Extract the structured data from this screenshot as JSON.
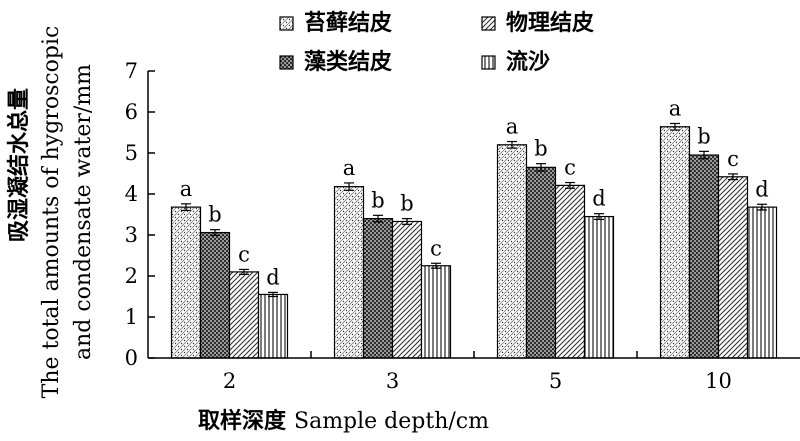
{
  "chart_data": {
    "type": "bar",
    "categories": [
      "2",
      "3",
      "5",
      "10"
    ],
    "series": [
      {
        "name": "苔藓结皮",
        "values": [
          3.68,
          4.18,
          5.2,
          5.64
        ],
        "errors": [
          0.08,
          0.09,
          0.08,
          0.08
        ],
        "labels": [
          "a",
          "a",
          "a",
          "a"
        ],
        "pattern": "dots"
      },
      {
        "name": "藻类结皮",
        "values": [
          3.06,
          3.4,
          4.65,
          4.95
        ],
        "errors": [
          0.07,
          0.08,
          0.09,
          0.09
        ],
        "labels": [
          "b",
          "b",
          "b",
          "b"
        ],
        "pattern": "checker"
      },
      {
        "name": "物理结皮",
        "values": [
          2.1,
          3.33,
          4.21,
          4.42
        ],
        "errors": [
          0.06,
          0.07,
          0.07,
          0.07
        ],
        "labels": [
          "c",
          "b",
          "c",
          "c"
        ],
        "pattern": "diagonal"
      },
      {
        "name": "流沙",
        "values": [
          1.55,
          2.25,
          3.45,
          3.68
        ],
        "errors": [
          0.05,
          0.06,
          0.07,
          0.07
        ],
        "labels": [
          "d",
          "c",
          "d",
          "d"
        ],
        "pattern": "vertical"
      }
    ],
    "xlabel_cn": "取样深度",
    "xlabel_en": "Sample depth/cm",
    "ylabel_cn": "吸湿凝结水总量",
    "ylabel_en_line1": "The total amounts of hygroscopic",
    "ylabel_en_line2": "and condensate water/mm",
    "ylim": [
      0,
      7
    ],
    "yticks": [
      0,
      1,
      2,
      3,
      4,
      5,
      6,
      7
    ],
    "grid": false,
    "legend_position": "top"
  }
}
